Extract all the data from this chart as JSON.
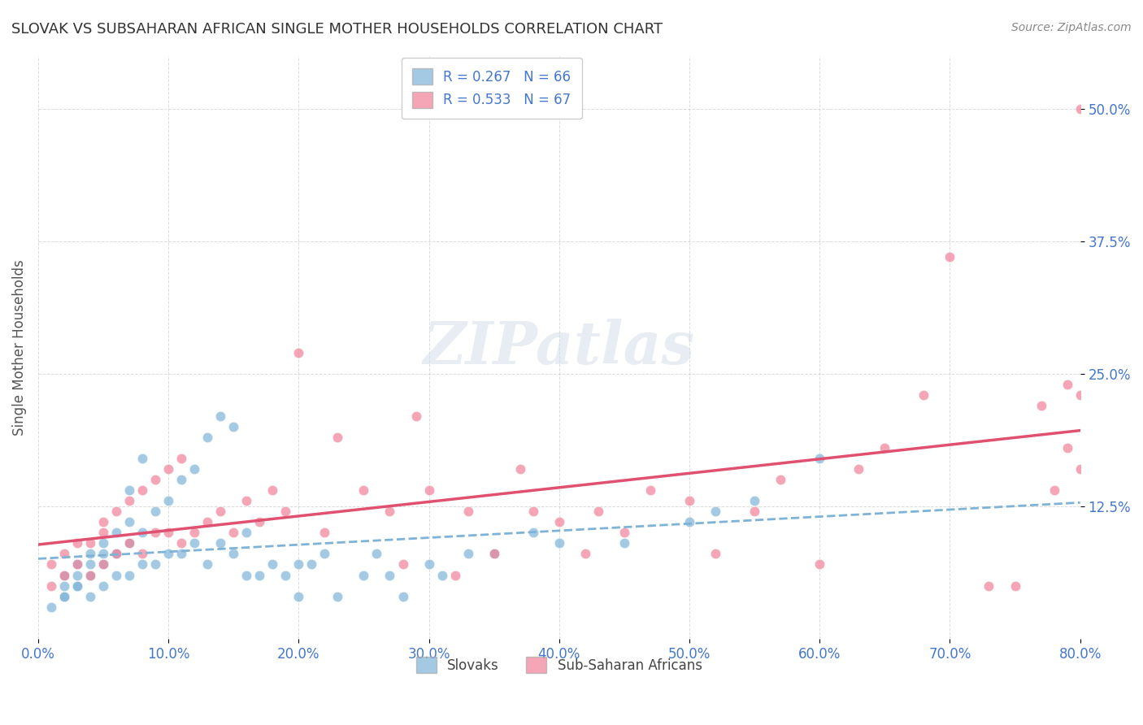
{
  "title": "SLOVAK VS SUBSAHARAN AFRICAN SINGLE MOTHER HOUSEHOLDS CORRELATION CHART",
  "source": "Source: ZipAtlas.com",
  "ylabel": "Single Mother Households",
  "xlabel_ticks": [
    "0.0%",
    "80.0%"
  ],
  "ytick_labels": [
    "50.0%",
    "37.5%",
    "25.0%",
    "12.5%"
  ],
  "ytick_values": [
    0.5,
    0.375,
    0.25,
    0.125
  ],
  "xlim": [
    0.0,
    0.8
  ],
  "ylim": [
    0.0,
    0.55
  ],
  "legend_entries": [
    {
      "label": "R = 0.267   N = 66",
      "color": "#a8c4e0"
    },
    {
      "label": "R = 0.533   N = 67",
      "color": "#f4a7b9"
    }
  ],
  "legend_bottom": [
    {
      "label": "Slovaks",
      "color": "#a8c4e0"
    },
    {
      "label": "Sub-Saharan Africans",
      "color": "#f4a7b9"
    }
  ],
  "slovak_color": "#7eb3d8",
  "subsaharan_color": "#f08098",
  "slovak_line_color": "#7eb3d8",
  "subsaharan_line_color": "#e05070",
  "title_color": "#333333",
  "axis_label_color": "#555555",
  "tick_color": "#4477cc",
  "watermark": "ZIPatlas",
  "slovak_x": [
    0.01,
    0.02,
    0.02,
    0.02,
    0.02,
    0.03,
    0.03,
    0.03,
    0.03,
    0.04,
    0.04,
    0.04,
    0.04,
    0.05,
    0.05,
    0.05,
    0.05,
    0.06,
    0.06,
    0.06,
    0.07,
    0.07,
    0.07,
    0.07,
    0.08,
    0.08,
    0.08,
    0.09,
    0.09,
    0.1,
    0.1,
    0.11,
    0.11,
    0.12,
    0.12,
    0.13,
    0.13,
    0.14,
    0.14,
    0.15,
    0.15,
    0.16,
    0.16,
    0.17,
    0.18,
    0.19,
    0.2,
    0.2,
    0.21,
    0.22,
    0.23,
    0.25,
    0.26,
    0.27,
    0.28,
    0.3,
    0.31,
    0.33,
    0.35,
    0.38,
    0.4,
    0.45,
    0.5,
    0.52,
    0.55,
    0.6
  ],
  "slovak_y": [
    0.03,
    0.04,
    0.05,
    0.06,
    0.04,
    0.05,
    0.06,
    0.07,
    0.05,
    0.04,
    0.06,
    0.07,
    0.08,
    0.05,
    0.07,
    0.08,
    0.09,
    0.06,
    0.08,
    0.1,
    0.06,
    0.09,
    0.11,
    0.14,
    0.07,
    0.1,
    0.17,
    0.07,
    0.12,
    0.08,
    0.13,
    0.08,
    0.15,
    0.09,
    0.16,
    0.07,
    0.19,
    0.09,
    0.21,
    0.08,
    0.2,
    0.1,
    0.06,
    0.06,
    0.07,
    0.06,
    0.07,
    0.04,
    0.07,
    0.08,
    0.04,
    0.06,
    0.08,
    0.06,
    0.04,
    0.07,
    0.06,
    0.08,
    0.08,
    0.1,
    0.09,
    0.09,
    0.11,
    0.12,
    0.13,
    0.17
  ],
  "subsaharan_x": [
    0.01,
    0.01,
    0.02,
    0.02,
    0.03,
    0.03,
    0.04,
    0.04,
    0.05,
    0.05,
    0.05,
    0.06,
    0.06,
    0.07,
    0.07,
    0.08,
    0.08,
    0.09,
    0.09,
    0.1,
    0.1,
    0.11,
    0.11,
    0.12,
    0.13,
    0.14,
    0.15,
    0.16,
    0.17,
    0.18,
    0.19,
    0.2,
    0.22,
    0.23,
    0.25,
    0.27,
    0.28,
    0.29,
    0.3,
    0.32,
    0.33,
    0.35,
    0.37,
    0.38,
    0.4,
    0.42,
    0.43,
    0.45,
    0.47,
    0.5,
    0.52,
    0.55,
    0.57,
    0.6,
    0.63,
    0.65,
    0.68,
    0.7,
    0.73,
    0.75,
    0.77,
    0.78,
    0.79,
    0.79,
    0.8,
    0.8,
    0.8
  ],
  "subsaharan_y": [
    0.05,
    0.07,
    0.06,
    0.08,
    0.07,
    0.09,
    0.06,
    0.09,
    0.07,
    0.1,
    0.11,
    0.08,
    0.12,
    0.09,
    0.13,
    0.08,
    0.14,
    0.1,
    0.15,
    0.1,
    0.16,
    0.09,
    0.17,
    0.1,
    0.11,
    0.12,
    0.1,
    0.13,
    0.11,
    0.14,
    0.12,
    0.27,
    0.1,
    0.19,
    0.14,
    0.12,
    0.07,
    0.21,
    0.14,
    0.06,
    0.12,
    0.08,
    0.16,
    0.12,
    0.11,
    0.08,
    0.12,
    0.1,
    0.14,
    0.13,
    0.08,
    0.12,
    0.15,
    0.07,
    0.16,
    0.18,
    0.23,
    0.36,
    0.05,
    0.05,
    0.22,
    0.14,
    0.18,
    0.24,
    0.16,
    0.23,
    0.5
  ]
}
